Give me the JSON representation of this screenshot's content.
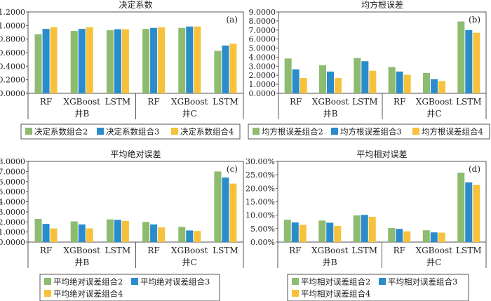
{
  "chart_data": [
    {
      "type": "bar",
      "panel_label": "(a)",
      "title": "决定系数",
      "groups": [
        "井B",
        "井C"
      ],
      "categories": [
        "RF",
        "XGBoost",
        "LSTM",
        "RF",
        "XGBoost",
        "LSTM"
      ],
      "ylim": [
        0,
        1.2
      ],
      "yticks": [
        "0.0000",
        "0.2000",
        "0.4000",
        "0.6000",
        "0.8000",
        "1.0000",
        "1.2000"
      ],
      "series": [
        {
          "name": "决定系数组合2",
          "color": "#8dbb6f",
          "values": [
            0.87,
            0.92,
            0.93,
            0.95,
            0.965,
            0.625
          ]
        },
        {
          "name": "决定系数组合3",
          "color": "#2a8ccb",
          "values": [
            0.95,
            0.95,
            0.945,
            0.965,
            0.985,
            0.705
          ]
        },
        {
          "name": "决定系数组合4",
          "color": "#f7c23b",
          "values": [
            0.975,
            0.975,
            0.945,
            0.975,
            0.985,
            0.73
          ]
        }
      ]
    },
    {
      "type": "bar",
      "panel_label": "(b)",
      "title": "均方根误差",
      "groups": [
        "井B",
        "井C"
      ],
      "categories": [
        "RF",
        "XGBoost",
        "LSTM",
        "RF",
        "XGBoost",
        "LSTM"
      ],
      "ylim": [
        0,
        9
      ],
      "yticks": [
        "0.0000",
        "1.0000",
        "2.0000",
        "3.0000",
        "4.0000",
        "5.0000",
        "6.0000",
        "7.0000",
        "8.0000",
        "9.0000"
      ],
      "series": [
        {
          "name": "均方根误差组合2",
          "color": "#8dbb6f",
          "values": [
            3.85,
            3.1,
            3.9,
            2.9,
            2.25,
            7.95
          ]
        },
        {
          "name": "均方根误差组合3",
          "color": "#2a8ccb",
          "values": [
            2.65,
            2.4,
            3.55,
            2.4,
            1.55,
            7.0
          ]
        },
        {
          "name": "均方根误差组合4",
          "color": "#f7c23b",
          "values": [
            1.7,
            1.7,
            2.5,
            2.05,
            1.35,
            6.7
          ]
        }
      ]
    },
    {
      "type": "bar",
      "panel_label": "(c)",
      "title": "平均绝对误差",
      "groups": [
        "井B",
        "井C"
      ],
      "categories": [
        "RF",
        "XGBoost",
        "LSTM",
        "RF",
        "XGBoost",
        "LSTM"
      ],
      "ylim": [
        0,
        8
      ],
      "yticks": [
        "0.0000",
        "1.0000",
        "2.0000",
        "3.0000",
        "4.0000",
        "5.0000",
        "6.0000",
        "7.0000",
        "8.0000"
      ],
      "series": [
        {
          "name": "平均绝对误差组合2",
          "color": "#8dbb6f",
          "values": [
            2.3,
            2.05,
            2.25,
            2.0,
            1.5,
            7.0
          ]
        },
        {
          "name": "平均绝对误差组合3",
          "color": "#2a8ccb",
          "values": [
            1.8,
            1.75,
            2.2,
            1.75,
            1.15,
            6.4
          ]
        },
        {
          "name": "平均绝对误差组合4",
          "color": "#f7c23b",
          "values": [
            1.35,
            1.35,
            2.1,
            1.45,
            1.1,
            5.8
          ]
        }
      ]
    },
    {
      "type": "bar",
      "panel_label": "(d)",
      "title": "平均相对误差",
      "groups": [
        "井B",
        "井C"
      ],
      "categories": [
        "RF",
        "XGBoost",
        "LSTM",
        "RF",
        "XGBoost",
        "LSTM"
      ],
      "ylim": [
        0,
        30
      ],
      "yticks": [
        "0.00%",
        "5.00%",
        "10.00%",
        "15.00%",
        "20.00%",
        "25.00%",
        "30.00%"
      ],
      "series": [
        {
          "name": "平均相对误差组合2",
          "color": "#8dbb6f",
          "values": [
            8.3,
            8.0,
            9.9,
            5.2,
            4.4,
            25.8
          ]
        },
        {
          "name": "平均相对误差组合3",
          "color": "#2a8ccb",
          "values": [
            7.3,
            7.2,
            10.1,
            4.9,
            3.6,
            22.2
          ]
        },
        {
          "name": "平均相对误差组合4",
          "color": "#f7c23b",
          "values": [
            6.4,
            6.0,
            9.4,
            4.0,
            3.5,
            21.2
          ]
        }
      ]
    }
  ]
}
